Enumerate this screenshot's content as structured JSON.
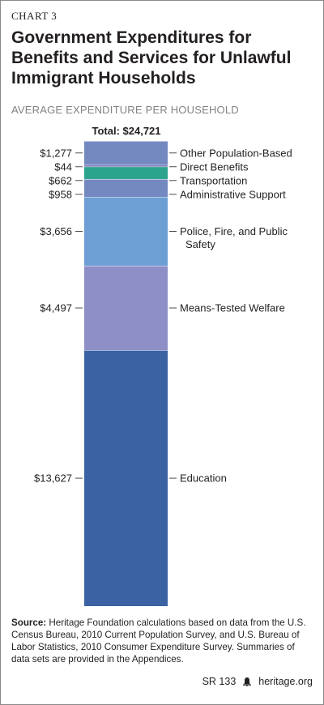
{
  "header": {
    "chart_number": "CHART 3",
    "title": "Government Expenditures for Benefits and Services for Unlawful Immigrant Households",
    "subtitle": "AVERAGE EXPENDITURE PER HOUSEHOLD"
  },
  "chart_data": {
    "type": "bar",
    "stacked": true,
    "title": "Government Expenditures for Benefits and Services for Unlawful Immigrant Households",
    "subtitle": "AVERAGE EXPENDITURE PER HOUSEHOLD",
    "total_label": "Total: $24,721",
    "total": 24721,
    "series": [
      {
        "name": "Education",
        "value": 13627,
        "label": "$13,627",
        "legend_lines": [
          "Education"
        ],
        "color": "#3b63a3"
      },
      {
        "name": "Means-Tested Welfare",
        "value": 4497,
        "label": "$4,497",
        "legend_lines": [
          "Means-Tested Welfare"
        ],
        "color": "#8f8fc8"
      },
      {
        "name": "Police, Fire, and Public Safety",
        "value": 3656,
        "label": "$3,656",
        "legend_lines": [
          "Police, Fire, and Public",
          "Safety"
        ],
        "color": "#6d9fd4"
      },
      {
        "name": "Administrative Support",
        "value": 958,
        "label": "$958",
        "legend_lines": [
          "Administrative Support"
        ],
        "color": "#7589c1"
      },
      {
        "name": "Transportation",
        "value": 662,
        "label": "$662",
        "legend_lines": [
          "Transportation"
        ],
        "color": "#2ba38d"
      },
      {
        "name": "Direct Benefits",
        "value": 44,
        "label": "$44",
        "legend_lines": [
          "Direct Benefits"
        ],
        "color": "#6b6bb0"
      },
      {
        "name": "Other Population-Based",
        "value": 1277,
        "label": "$1,277",
        "legend_lines": [
          "Other Population-Based"
        ],
        "color": "#7589c1"
      }
    ]
  },
  "source": {
    "label": "Source:",
    "text": " Heritage Foundation calculations based on data from the U.S. Census Bureau, 2010 Current Population Survey, and U.S. Bureau of Labor Statistics, 2010 Consumer Expenditure Survey. Summaries of data sets are provided in the Appendices."
  },
  "footer": {
    "report_id": "SR 133",
    "site": "heritage.org",
    "logo_icon": "bell-icon"
  }
}
